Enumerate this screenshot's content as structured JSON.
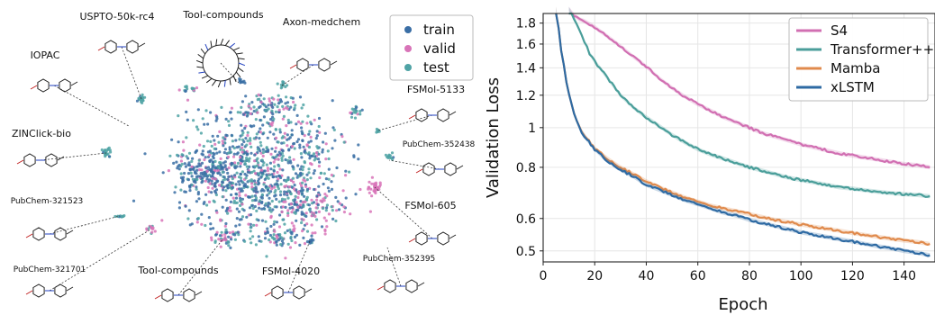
{
  "chart_data": [
    {
      "type": "scatter",
      "legend": {
        "placement": "top-right",
        "entries": [
          {
            "name": "train",
            "color": "#3a6ea5"
          },
          {
            "name": "valid",
            "color": "#d874b8"
          },
          {
            "name": "test",
            "color": "#4fa3a5"
          }
        ]
      },
      "annotations": [
        {
          "label": "USPTO-50k-rc4",
          "icon": "molecule-structure-icon"
        },
        {
          "label": "Tool-compounds",
          "icon": "macrocycle-molecule-icon"
        },
        {
          "label": "Axon-medchem",
          "icon": "molecule-structure-icon"
        },
        {
          "label": "IOPAC",
          "icon": "molecule-structure-icon"
        },
        {
          "label": "FSMol-5133",
          "icon": "molecule-structure-icon"
        },
        {
          "label": "ZINClick-bio",
          "icon": "molecule-structure-icon"
        },
        {
          "label": "PubChem-352438",
          "icon": "molecule-structure-icon"
        },
        {
          "label": "PubChem-321523",
          "icon": "molecule-structure-icon"
        },
        {
          "label": "FSMol-605",
          "icon": "molecule-structure-icon"
        },
        {
          "label": "PubChem-321701",
          "icon": "molecule-structure-icon"
        },
        {
          "label": "Tool-compounds",
          "icon": "molecule-structure-icon"
        },
        {
          "label": "FSMol-4020",
          "icon": "molecule-structure-icon"
        },
        {
          "label": "PubChem-352395",
          "icon": "molecule-structure-icon"
        }
      ]
    },
    {
      "type": "line",
      "xlabel": "Epoch",
      "ylabel": "Validation Loss",
      "xlim": [
        0,
        152
      ],
      "ylim": [
        0.47,
        1.9
      ],
      "yscale": "log",
      "grid": true,
      "xticks": [
        0,
        20,
        40,
        60,
        80,
        100,
        120,
        140
      ],
      "yticks": [
        0.5,
        0.6,
        0.8,
        1,
        1.2,
        1.4,
        1.6,
        1.8
      ],
      "yticklabels": [
        "0.5",
        "0.6",
        "0.8",
        "1",
        "1.2",
        "1.4",
        "1.6",
        "1.8"
      ],
      "legend": {
        "placement": "top-right"
      },
      "series": [
        {
          "name": "S4",
          "color": "#d16fb2",
          "x": [
            10,
            12,
            14,
            16,
            18,
            20,
            25,
            30,
            35,
            40,
            45,
            50,
            55,
            60,
            65,
            70,
            75,
            80,
            85,
            90,
            95,
            100,
            105,
            110,
            115,
            120,
            125,
            130,
            135,
            140,
            145,
            150
          ],
          "y": [
            1.95,
            1.88,
            1.84,
            1.82,
            1.79,
            1.76,
            1.67,
            1.58,
            1.49,
            1.41,
            1.32,
            1.25,
            1.19,
            1.14,
            1.1,
            1.06,
            1.03,
            1.0,
            0.97,
            0.95,
            0.93,
            0.91,
            0.895,
            0.88,
            0.865,
            0.855,
            0.845,
            0.835,
            0.825,
            0.815,
            0.81,
            0.8
          ]
        },
        {
          "name": "Transformer++",
          "color": "#4a9e9a",
          "x": [
            10,
            12,
            14,
            16,
            18,
            20,
            22,
            25,
            30,
            35,
            40,
            45,
            50,
            55,
            60,
            65,
            70,
            75,
            80,
            85,
            90,
            95,
            100,
            105,
            110,
            115,
            120,
            125,
            130,
            135,
            140,
            145,
            150
          ],
          "y": [
            1.95,
            1.85,
            1.74,
            1.62,
            1.52,
            1.45,
            1.4,
            1.32,
            1.2,
            1.12,
            1.06,
            1.01,
            0.96,
            0.92,
            0.885,
            0.86,
            0.84,
            0.82,
            0.8,
            0.785,
            0.77,
            0.755,
            0.745,
            0.735,
            0.725,
            0.715,
            0.71,
            0.703,
            0.697,
            0.692,
            0.688,
            0.685,
            0.68
          ]
        },
        {
          "name": "Mamba",
          "color": "#e08a4c",
          "x": [
            5,
            7,
            9,
            11,
            13,
            15,
            17,
            20,
            25,
            30,
            35,
            40,
            45,
            50,
            55,
            60,
            65,
            70,
            75,
            80,
            85,
            90,
            95,
            100,
            105,
            110,
            115,
            120,
            125,
            130,
            135,
            140,
            145,
            150
          ],
          "y": [
            1.95,
            1.55,
            1.3,
            1.14,
            1.04,
            0.98,
            0.94,
            0.89,
            0.84,
            0.8,
            0.77,
            0.74,
            0.715,
            0.695,
            0.675,
            0.66,
            0.645,
            0.635,
            0.625,
            0.615,
            0.605,
            0.595,
            0.588,
            0.58,
            0.573,
            0.567,
            0.56,
            0.553,
            0.547,
            0.541,
            0.535,
            0.53,
            0.526,
            0.52
          ]
        },
        {
          "name": "xLSTM",
          "color": "#2e6aa3",
          "x": [
            5,
            7,
            9,
            11,
            13,
            15,
            17,
            20,
            25,
            30,
            35,
            40,
            45,
            50,
            55,
            60,
            65,
            70,
            75,
            80,
            85,
            90,
            95,
            100,
            105,
            110,
            115,
            120,
            125,
            130,
            135,
            140,
            145,
            150
          ],
          "y": [
            1.95,
            1.55,
            1.3,
            1.14,
            1.04,
            0.975,
            0.935,
            0.885,
            0.83,
            0.79,
            0.76,
            0.725,
            0.705,
            0.685,
            0.665,
            0.65,
            0.635,
            0.62,
            0.61,
            0.595,
            0.585,
            0.575,
            0.565,
            0.555,
            0.548,
            0.541,
            0.534,
            0.527,
            0.52,
            0.513,
            0.507,
            0.5,
            0.495,
            0.488
          ]
        }
      ]
    }
  ]
}
